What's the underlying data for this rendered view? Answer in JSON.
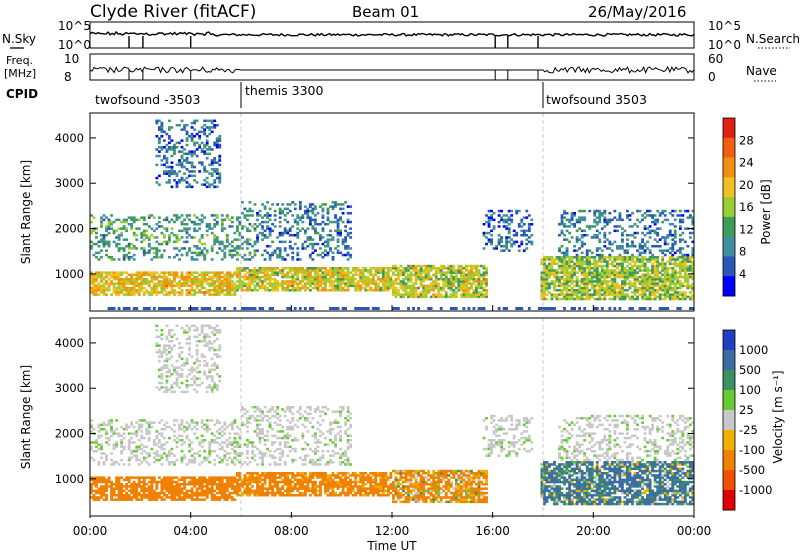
{
  "header": {
    "station": "Clyde River (fitACF)",
    "beam": "Beam 01",
    "date": "26/May/2016"
  },
  "top_panels": {
    "nsky_label": "N.Sky",
    "nsky_ticks": [
      "10^5",
      "10^0"
    ],
    "nsearch_label": "N.Search",
    "nsearch_ticks": [
      "10^5",
      "10^0"
    ],
    "freq_label_1": "Freq.",
    "freq_label_2": "[MHz]",
    "freq_ticks": [
      "10",
      "8"
    ],
    "nave_label": "Nave",
    "nave_ticks": [
      "60",
      "0"
    ],
    "cpid_label": "CPID",
    "cpid_segments": [
      {
        "label": "twofsound -3503",
        "start": 0,
        "end": 6
      },
      {
        "label": "themis 3300",
        "start": 6,
        "end": 18
      },
      {
        "label": "twofsound 3503",
        "start": 18,
        "end": 24
      }
    ]
  },
  "chart_data": [
    {
      "type": "heatmap",
      "ylabel": "Slant Range [km]",
      "y_ticks": [
        "1000",
        "2000",
        "3000",
        "4000"
      ],
      "ylim": [
        180,
        4550
      ],
      "xlim": [
        0,
        24
      ],
      "colorbar_label": "Power [dB]",
      "colorbar_ticks": [
        "4",
        "8",
        "12",
        "16",
        "20",
        "24",
        "28"
      ],
      "colorbar_range": [
        0,
        32
      ],
      "colors": [
        "#0000ff",
        "#2a56b8",
        "#3f8fa0",
        "#3f9b5a",
        "#9acd32",
        "#f0c020",
        "#f59010",
        "#f06010",
        "#e02010"
      ]
    },
    {
      "type": "heatmap",
      "ylabel": "Slant Range [km]",
      "y_ticks": [
        "1000",
        "2000",
        "3000",
        "4000"
      ],
      "ylim": [
        180,
        4550
      ],
      "xlim": [
        0,
        24
      ],
      "xlabel": "Time UT",
      "x_ticks": [
        "00:00",
        "04:00",
        "08:00",
        "12:00",
        "16:00",
        "20:00",
        "00:00"
      ],
      "colorbar_label": "Velocity [m s⁻¹]",
      "colorbar_ticks": [
        "1000",
        "500",
        "100",
        "25",
        "-25",
        "-100",
        "-500",
        "-1000"
      ],
      "colors": [
        "#2040c0",
        "#3a6ea0",
        "#3f9060",
        "#66cc33",
        "#c8c8c8",
        "#f0b000",
        "#f08000",
        "#f05000",
        "#e00000"
      ]
    }
  ]
}
